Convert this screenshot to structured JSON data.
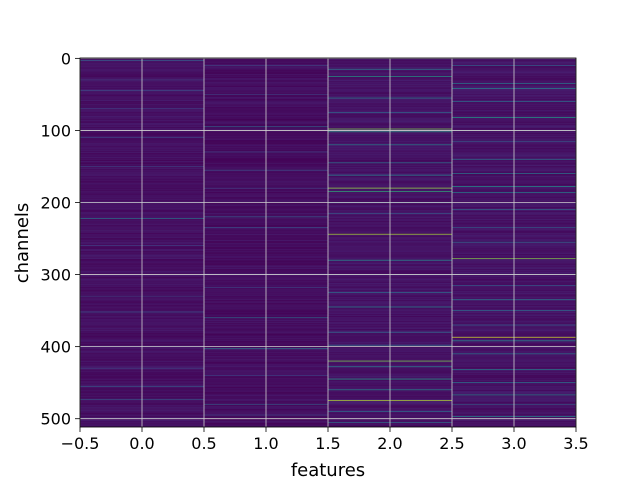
{
  "chart_data": {
    "type": "heatmap",
    "colormap": "viridis",
    "xlabel": "features",
    "ylabel": "channels",
    "xlim": [
      -0.5,
      3.5
    ],
    "ylim": [
      511.5,
      -0.5
    ],
    "x_ticks": [
      -0.5,
      0.0,
      0.5,
      1.0,
      1.5,
      2.0,
      2.5,
      3.0,
      3.5
    ],
    "x_tick_labels": [
      "−0.5",
      "0.0",
      "0.5",
      "1.0",
      "1.5",
      "2.0",
      "2.5",
      "3.0",
      "3.5"
    ],
    "y_ticks": [
      0,
      100,
      200,
      300,
      400,
      500
    ],
    "y_tick_labels": [
      "0",
      "100",
      "200",
      "300",
      "400",
      "500"
    ],
    "grid": true,
    "grid_color": "#cfcfcf",
    "n_channels": 512,
    "n_features": 4,
    "columns": [
      {
        "feature": 0,
        "background": 0.06,
        "highlights": [
          {
            "channel": 3,
            "value": 0.3
          },
          {
            "channel": 30,
            "value": 0.2
          },
          {
            "channel": 45,
            "value": 0.25
          },
          {
            "channel": 70,
            "value": 0.2
          },
          {
            "channel": 110,
            "value": 0.2
          },
          {
            "channel": 150,
            "value": 0.2
          },
          {
            "channel": 200,
            "value": 0.2
          },
          {
            "channel": 222,
            "value": 0.42
          },
          {
            "channel": 260,
            "value": 0.2
          },
          {
            "channel": 330,
            "value": 0.2
          },
          {
            "channel": 352,
            "value": 0.25
          },
          {
            "channel": 400,
            "value": 0.22
          },
          {
            "channel": 430,
            "value": 0.2
          },
          {
            "channel": 455,
            "value": 0.3
          },
          {
            "channel": 473,
            "value": 0.3
          },
          {
            "channel": 500,
            "value": 0.2
          }
        ]
      },
      {
        "feature": 1,
        "background": 0.05,
        "highlights": [
          {
            "channel": 10,
            "value": 0.2
          },
          {
            "channel": 50,
            "value": 0.2
          },
          {
            "channel": 95,
            "value": 0.35
          },
          {
            "channel": 130,
            "value": 0.2
          },
          {
            "channel": 155,
            "value": 0.25
          },
          {
            "channel": 180,
            "value": 0.2
          },
          {
            "channel": 220,
            "value": 0.3
          },
          {
            "channel": 235,
            "value": 0.25
          },
          {
            "channel": 300,
            "value": 0.2
          },
          {
            "channel": 318,
            "value": 0.2
          },
          {
            "channel": 360,
            "value": 0.35
          },
          {
            "channel": 403,
            "value": 0.45
          },
          {
            "channel": 440,
            "value": 0.2
          },
          {
            "channel": 480,
            "value": 0.3
          },
          {
            "channel": 495,
            "value": 0.2
          }
        ]
      },
      {
        "feature": 2,
        "background": 0.07,
        "highlights": [
          {
            "channel": 15,
            "value": 0.45
          },
          {
            "channel": 25,
            "value": 0.55
          },
          {
            "channel": 55,
            "value": 0.45
          },
          {
            "channel": 75,
            "value": 0.35
          },
          {
            "channel": 98,
            "value": 0.8
          },
          {
            "channel": 102,
            "value": 0.6
          },
          {
            "channel": 120,
            "value": 0.45
          },
          {
            "channel": 145,
            "value": 0.4
          },
          {
            "channel": 162,
            "value": 0.45
          },
          {
            "channel": 180,
            "value": 0.85
          },
          {
            "channel": 185,
            "value": 0.65
          },
          {
            "channel": 200,
            "value": 0.35
          },
          {
            "channel": 215,
            "value": 0.3
          },
          {
            "channel": 244,
            "value": 0.88
          },
          {
            "channel": 280,
            "value": 0.5
          },
          {
            "channel": 300,
            "value": 0.3
          },
          {
            "channel": 325,
            "value": 0.35
          },
          {
            "channel": 345,
            "value": 0.45
          },
          {
            "channel": 380,
            "value": 0.35
          },
          {
            "channel": 398,
            "value": 0.4
          },
          {
            "channel": 420,
            "value": 0.8
          },
          {
            "channel": 428,
            "value": 0.45
          },
          {
            "channel": 445,
            "value": 0.55
          },
          {
            "channel": 460,
            "value": 0.5
          },
          {
            "channel": 475,
            "value": 0.9
          },
          {
            "channel": 490,
            "value": 0.35
          },
          {
            "channel": 505,
            "value": 0.4
          }
        ]
      },
      {
        "feature": 3,
        "background": 0.07,
        "highlights": [
          {
            "channel": 10,
            "value": 0.3
          },
          {
            "channel": 35,
            "value": 0.4
          },
          {
            "channel": 42,
            "value": 0.45
          },
          {
            "channel": 60,
            "value": 0.35
          },
          {
            "channel": 82,
            "value": 0.55
          },
          {
            "channel": 100,
            "value": 0.35
          },
          {
            "channel": 115,
            "value": 0.3
          },
          {
            "channel": 140,
            "value": 0.4
          },
          {
            "channel": 160,
            "value": 0.4
          },
          {
            "channel": 178,
            "value": 0.5
          },
          {
            "channel": 186,
            "value": 0.45
          },
          {
            "channel": 210,
            "value": 0.35
          },
          {
            "channel": 235,
            "value": 0.3
          },
          {
            "channel": 255,
            "value": 0.35
          },
          {
            "channel": 278,
            "value": 0.82
          },
          {
            "channel": 300,
            "value": 0.3
          },
          {
            "channel": 315,
            "value": 0.3
          },
          {
            "channel": 335,
            "value": 0.45
          },
          {
            "channel": 350,
            "value": 0.35
          },
          {
            "channel": 370,
            "value": 0.3
          },
          {
            "channel": 387,
            "value": 0.95
          },
          {
            "channel": 392,
            "value": 0.5
          },
          {
            "channel": 410,
            "value": 0.4
          },
          {
            "channel": 432,
            "value": 0.45
          },
          {
            "channel": 450,
            "value": 0.4
          },
          {
            "channel": 467,
            "value": 0.45
          },
          {
            "channel": 480,
            "value": 0.3
          },
          {
            "channel": 497,
            "value": 0.45
          }
        ]
      }
    ]
  }
}
